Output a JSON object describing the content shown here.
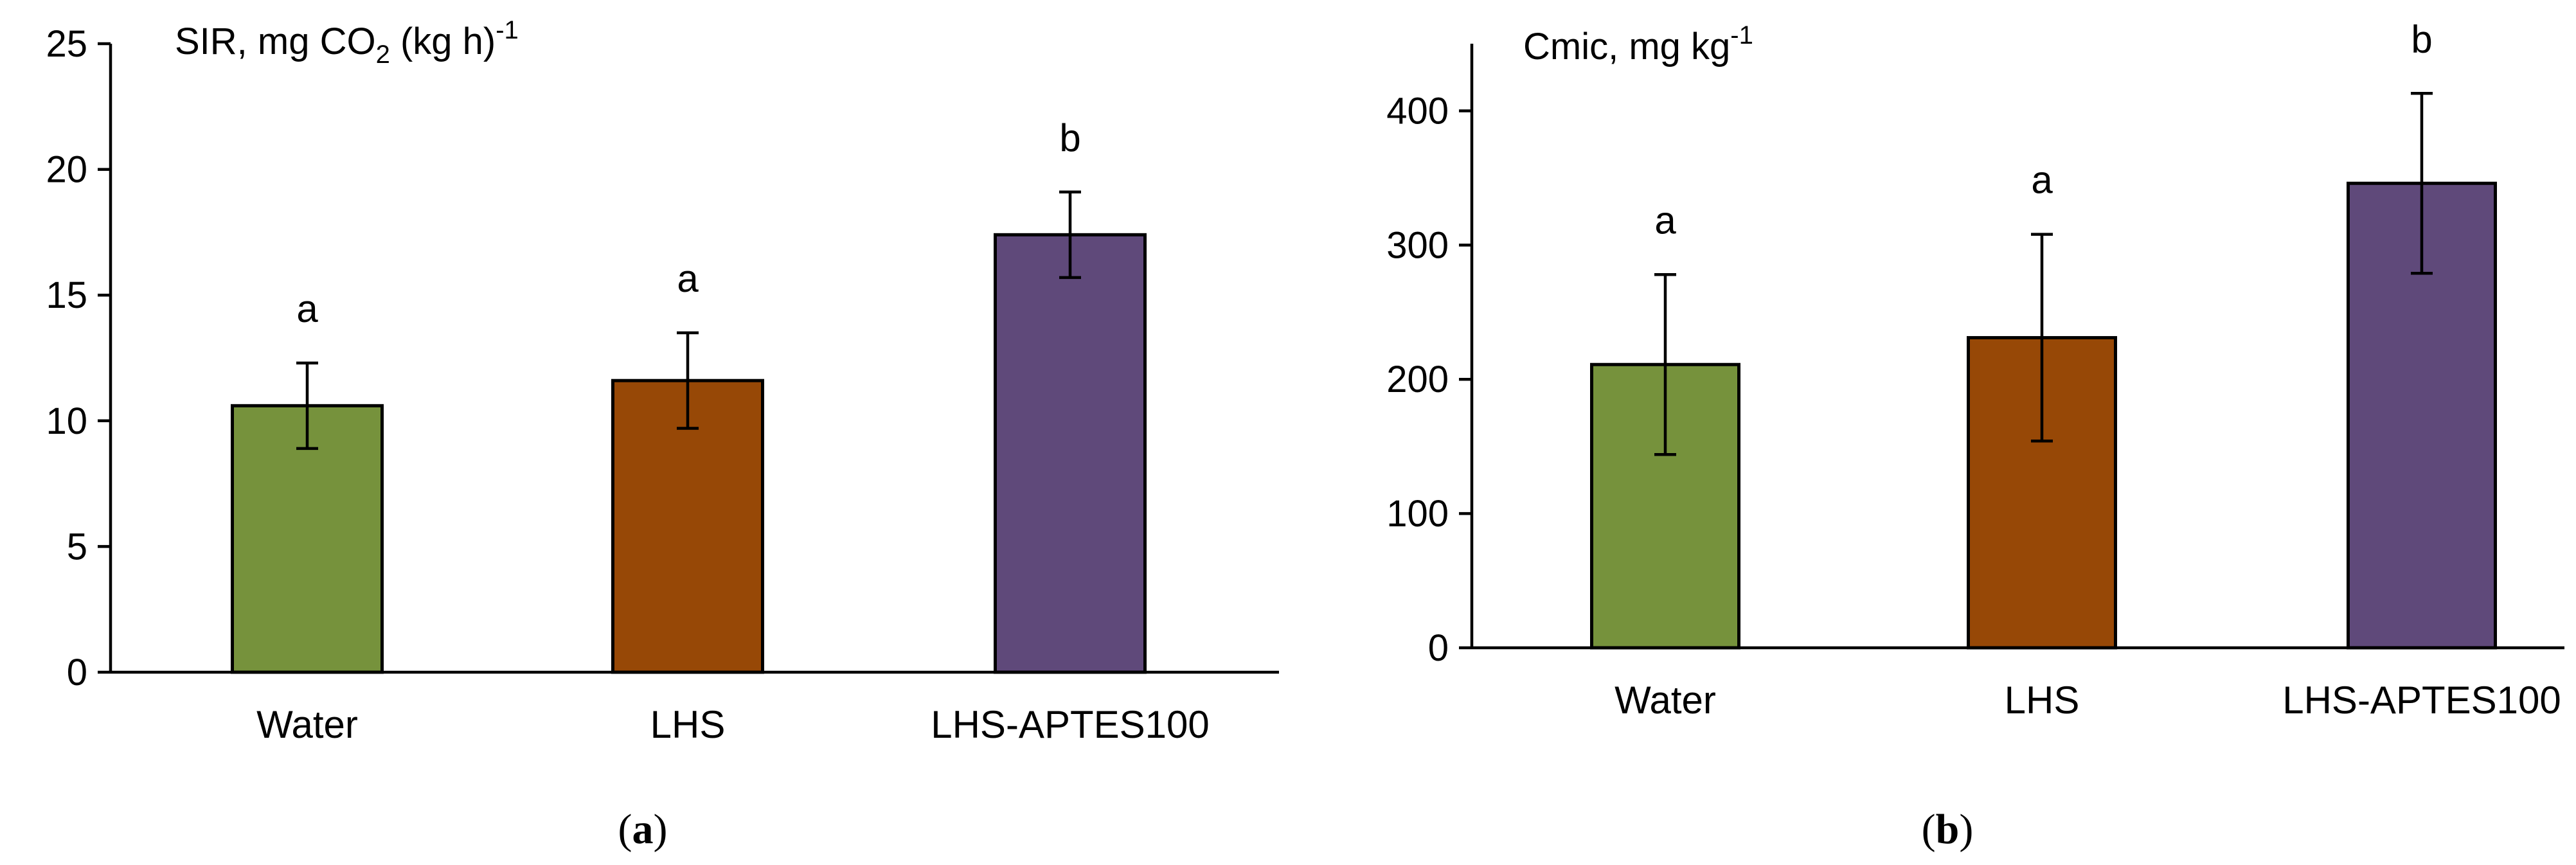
{
  "chart_data": [
    {
      "type": "bar",
      "panel_label": "a",
      "title": {
        "main": "SIR, mg CO",
        "sub": "2",
        "tail": " (kg h)",
        "sup": "-1"
      },
      "categories": [
        "Water",
        "LHS",
        "LHS-APTES100"
      ],
      "values": [
        10.6,
        11.6,
        17.4
      ],
      "errors": [
        1.7,
        1.9,
        1.7
      ],
      "significance": [
        "a",
        "a",
        "b"
      ],
      "colors": [
        "#76923c",
        "#974806",
        "#5f497a"
      ],
      "ylim": [
        0,
        25
      ],
      "yticks": [
        0,
        5,
        10,
        15,
        20,
        25
      ],
      "xlabel": "",
      "ylabel": ""
    },
    {
      "type": "bar",
      "panel_label": "b",
      "title": {
        "main": "Cmic, mg kg",
        "sup": "-1"
      },
      "categories": [
        "Water",
        "LHS",
        "LHS-APTES100"
      ],
      "values": [
        211,
        231,
        346
      ],
      "errors": [
        67,
        77,
        67
      ],
      "significance": [
        "a",
        "a",
        "b"
      ],
      "colors": [
        "#76923c",
        "#974806",
        "#5f497a"
      ],
      "ylim": [
        0,
        450
      ],
      "yticks": [
        0,
        100,
        200,
        300,
        400
      ],
      "xlabel": "",
      "ylabel": ""
    }
  ]
}
